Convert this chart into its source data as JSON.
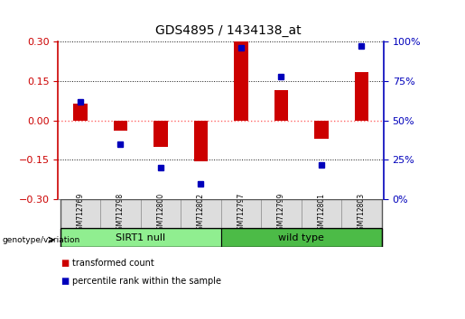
{
  "title": "GDS4895 / 1434138_at",
  "samples": [
    "GSM712769",
    "GSM712798",
    "GSM712800",
    "GSM712802",
    "GSM712797",
    "GSM712799",
    "GSM712801",
    "GSM712803"
  ],
  "red_values": [
    0.065,
    -0.038,
    -0.1,
    -0.155,
    0.3,
    0.115,
    -0.07,
    0.185
  ],
  "blue_pct": [
    62,
    35,
    20,
    10,
    96,
    78,
    22,
    97
  ],
  "groups": [
    {
      "label": "SIRT1 null",
      "start": 0,
      "end": 4,
      "color": "#90EE90"
    },
    {
      "label": "wild type",
      "start": 4,
      "end": 8,
      "color": "#4CBB47"
    }
  ],
  "group_label": "genotype/variation",
  "ylim": [
    -0.3,
    0.3
  ],
  "yticks_left": [
    -0.3,
    -0.15,
    0.0,
    0.15,
    0.3
  ],
  "yticks_right_pct": [
    0,
    25,
    50,
    75,
    100
  ],
  "bar_color": "#CC0000",
  "blue_color": "#0000BB",
  "zero_line_color": "#FF6666",
  "dotted_line_color": "#111111",
  "legend_red": "transformed count",
  "legend_blue": "percentile rank within the sample",
  "bar_width": 0.35
}
